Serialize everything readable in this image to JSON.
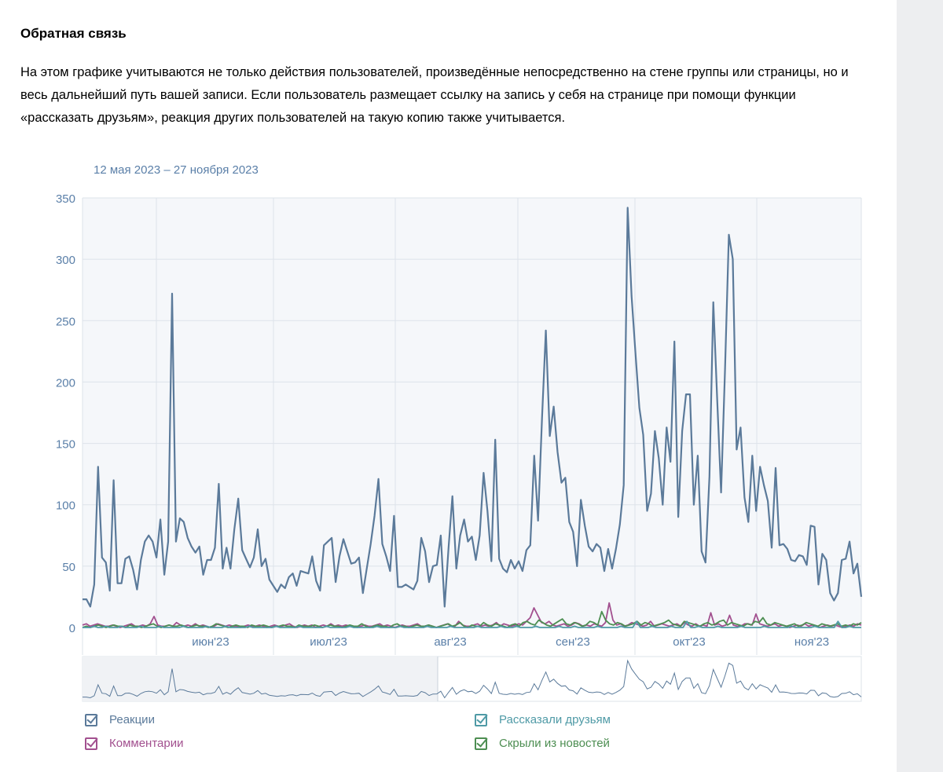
{
  "section": {
    "title": "Обратная связь",
    "description": "На этом графике учитываются не только действия пользователей, произведённые непосредственно на стене группы или страницы, но и весь дальнейший путь вашей записи. Если пользователь размещает ссылку на запись у себя на странице при помощи функции «рассказать друзьям», реакция других пользователей на такую копию также учитывается."
  },
  "chart_data": {
    "type": "line",
    "date_range_label": "12 мая 2023 – 27 ноября 2023",
    "yticks": [
      "0",
      "50",
      "100",
      "150",
      "200",
      "250",
      "300",
      "350"
    ],
    "ylim": [
      0,
      350
    ],
    "xticks": [
      "июн'23",
      "июл'23",
      "авг'23",
      "сен'23",
      "окт'23",
      "ноя'23"
    ],
    "grid": true,
    "legend_position": "bottom",
    "series": [
      {
        "name": "Реакции",
        "color": "#5b7a9a",
        "values": [
          23,
          23,
          17,
          35,
          131,
          57,
          53,
          30,
          120,
          36,
          36,
          56,
          58,
          47,
          31,
          55,
          70,
          75,
          70,
          57,
          88,
          43,
          70,
          272,
          70,
          89,
          86,
          73,
          66,
          61,
          66,
          43,
          55,
          55,
          65,
          117,
          48,
          65,
          48,
          80,
          105,
          63,
          56,
          49,
          57,
          80,
          50,
          56,
          39,
          34,
          29,
          35,
          32,
          41,
          44,
          34,
          46,
          45,
          44,
          58,
          38,
          30,
          67,
          70,
          73,
          37,
          58,
          72,
          62,
          52,
          53,
          57,
          28,
          48,
          68,
          91,
          121,
          68,
          58,
          46,
          91,
          33,
          33,
          35,
          33,
          31,
          38,
          73,
          62,
          37,
          50,
          51,
          75,
          17,
          65,
          107,
          48,
          75,
          88,
          70,
          74,
          55,
          75,
          126,
          95,
          54,
          153,
          56,
          48,
          45,
          55,
          48,
          54,
          46,
          63,
          67,
          140,
          87,
          170,
          242,
          156,
          180,
          143,
          118,
          122,
          86,
          78,
          50,
          104,
          83,
          66,
          62,
          68,
          65,
          46,
          64,
          48,
          64,
          84,
          116,
          342,
          270,
          224,
          179,
          157,
          95,
          109,
          160,
          138,
          100,
          163,
          135,
          233,
          90,
          160,
          190,
          190,
          100,
          140,
          62,
          53,
          123,
          265,
          185,
          110,
          210,
          320,
          300,
          145,
          163,
          106,
          86,
          140,
          95,
          131,
          116,
          103,
          65,
          130,
          67,
          68,
          64,
          55,
          54,
          59,
          58,
          51,
          83,
          82,
          35,
          60,
          55,
          28,
          22,
          28,
          55,
          56,
          70,
          44,
          52,
          25
        ]
      },
      {
        "name": "Комментарии",
        "color": "#a2508f",
        "values": [
          2,
          3,
          1,
          2,
          3,
          2,
          1,
          1,
          2,
          1,
          0,
          1,
          2,
          3,
          1,
          1,
          2,
          1,
          3,
          9,
          2,
          1,
          1,
          2,
          1,
          4,
          2,
          1,
          2,
          1,
          3,
          1,
          2,
          1,
          0,
          1,
          3,
          2,
          1,
          2,
          1,
          1,
          0,
          1,
          2,
          1,
          1,
          2,
          1,
          0,
          1,
          2,
          1,
          1,
          2,
          3,
          1,
          0,
          1,
          2,
          1,
          2,
          0,
          1,
          2,
          1,
          3,
          1,
          2,
          1,
          2,
          1,
          1,
          0,
          1,
          2,
          1,
          1,
          2,
          3,
          1,
          2,
          1,
          0,
          1,
          2,
          1,
          1,
          2,
          3,
          1,
          1,
          2,
          1,
          0,
          1,
          2,
          3,
          1,
          1,
          5,
          2,
          1,
          1,
          2,
          3,
          1,
          2,
          1,
          2,
          4,
          1,
          3,
          2,
          1,
          2,
          3,
          2,
          5,
          8,
          16,
          10,
          4,
          3,
          5,
          2,
          1,
          2,
          3,
          1,
          2,
          4,
          3,
          1,
          2,
          1,
          3,
          2,
          1,
          4,
          20,
          6,
          2,
          3,
          1,
          2,
          4,
          3,
          2,
          1,
          2,
          5,
          1,
          2,
          3,
          2,
          1,
          2,
          3,
          1,
          4,
          2,
          1,
          3,
          1,
          2,
          1,
          12,
          2,
          3,
          1,
          2,
          10,
          2,
          1,
          1,
          3,
          3,
          2,
          11,
          3,
          2,
          1,
          2,
          3,
          1,
          2,
          1,
          0,
          1,
          2,
          1,
          3,
          1,
          2,
          1,
          0,
          1,
          2,
          1,
          2,
          1,
          0,
          1,
          2,
          1,
          3,
          2
        ]
      },
      {
        "name": "Рассказали друзьям",
        "color": "#4f9aa6",
        "values": [
          0,
          0,
          0,
          1,
          0,
          0,
          1,
          0,
          0,
          0,
          1,
          0,
          0,
          0,
          0,
          1,
          0,
          0,
          0,
          0,
          1,
          0,
          0,
          0,
          0,
          0,
          1,
          0,
          0,
          0,
          0,
          0,
          1,
          0,
          0,
          0,
          0,
          1,
          0,
          0,
          0,
          0,
          0,
          1,
          0,
          0,
          0,
          0,
          0,
          0,
          1,
          0,
          0,
          0,
          0,
          0,
          1,
          0,
          0,
          0,
          0,
          0,
          0,
          1,
          0,
          0,
          0,
          0,
          0,
          1,
          0,
          0,
          0,
          0,
          0,
          0,
          1,
          0,
          0,
          0,
          0,
          0,
          1,
          0,
          0,
          0,
          0,
          0,
          0,
          1,
          0,
          0,
          0,
          0,
          0,
          1,
          0,
          0,
          0,
          0,
          0,
          0,
          1,
          0,
          0,
          0,
          0,
          0,
          1,
          0,
          0,
          0,
          1,
          0,
          0,
          0,
          0,
          1,
          0,
          0,
          0,
          0,
          0,
          1,
          0,
          0,
          0,
          1,
          0,
          0,
          0,
          0,
          0,
          1,
          0,
          0,
          0,
          0,
          0,
          1,
          0,
          0,
          0,
          5,
          0,
          0,
          0,
          1,
          0,
          0,
          0,
          0,
          1,
          0,
          0,
          0,
          5,
          0,
          0,
          1,
          0,
          0,
          0,
          0,
          1,
          0,
          0,
          0,
          0,
          0,
          1,
          0,
          0,
          0,
          0,
          0,
          1,
          0,
          0,
          0,
          0,
          0,
          0,
          1,
          0,
          0,
          0,
          0,
          0,
          1,
          0,
          0,
          0,
          0,
          0,
          5,
          0,
          0,
          1,
          0,
          0,
          0
        ]
      },
      {
        "name": "Скрыли из новостей",
        "color": "#4d8e52",
        "values": [
          0,
          1,
          0,
          1,
          2,
          1,
          0,
          1,
          2,
          1,
          1,
          0,
          2,
          1,
          1,
          0,
          1,
          2,
          3,
          1,
          0,
          1,
          2,
          1,
          1,
          2,
          1,
          0,
          1,
          2,
          1,
          1,
          0,
          1,
          3,
          2,
          1,
          0,
          1,
          2,
          1,
          1,
          0,
          2,
          1,
          1,
          2,
          1,
          0,
          1,
          1,
          2,
          1,
          1,
          0,
          2,
          1,
          1,
          1,
          2,
          1,
          0,
          1,
          2,
          1,
          1,
          0,
          1,
          2,
          1,
          1,
          3,
          1,
          0,
          1,
          2,
          1,
          1,
          0,
          2,
          3,
          1,
          1,
          0,
          1,
          2,
          1,
          1,
          2,
          1,
          0,
          1,
          2,
          3,
          1,
          2,
          4,
          1,
          0,
          2,
          1,
          1,
          4,
          2,
          1,
          3,
          2,
          1,
          0,
          2,
          3,
          1,
          4,
          5,
          3,
          2,
          6,
          4,
          2,
          1,
          3,
          5,
          7,
          3,
          2,
          4,
          3,
          1,
          2,
          5,
          4,
          2,
          13,
          6,
          3,
          2,
          4,
          3,
          1,
          2,
          3,
          5,
          2,
          4,
          3,
          1,
          2,
          3,
          4,
          6,
          3,
          2,
          1,
          5,
          4,
          3,
          2,
          1,
          3,
          4,
          2,
          3,
          5,
          6,
          2,
          4,
          3,
          2,
          1,
          3,
          2,
          5,
          4,
          8,
          3,
          2,
          4,
          3,
          2,
          1,
          2,
          3,
          1,
          2,
          4,
          3,
          2,
          1,
          3,
          2,
          1,
          2,
          3,
          1,
          2,
          1,
          3,
          2,
          4
        ]
      }
    ]
  },
  "legend": [
    {
      "label": "Реакции"
    },
    {
      "label": "Комментарии"
    },
    {
      "label": "Рассказали друзьям"
    },
    {
      "label": "Скрыли из новостей"
    }
  ]
}
